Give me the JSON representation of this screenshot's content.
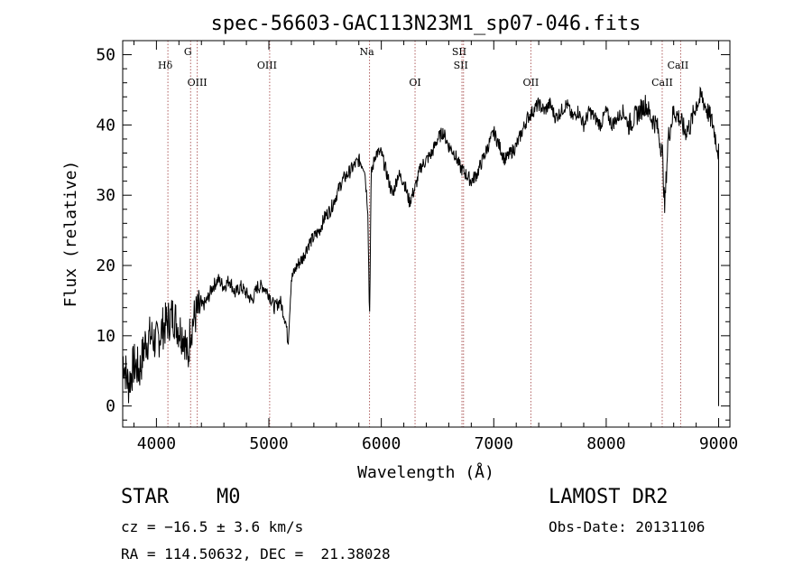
{
  "chart_data": {
    "type": "line",
    "title": "spec-56603-GAC113N23M1_sp07-046.fits",
    "xlabel": "Wavelength (Å)",
    "ylabel": "Flux (relative)",
    "xlim": [
      3700,
      9100
    ],
    "ylim": [
      -3,
      52
    ],
    "xticks": [
      4000,
      5000,
      6000,
      7000,
      8000,
      9000
    ],
    "yticks": [
      0,
      10,
      20,
      30,
      40,
      50
    ],
    "grid": false,
    "series": [
      {
        "x": [
          3700,
          3750,
          3800,
          3850,
          3900,
          3950,
          4000,
          4050,
          4100,
          4150,
          4200,
          4250,
          4280,
          4300,
          4350,
          4400,
          4450,
          4500,
          4550,
          4600,
          4650,
          4700,
          4750,
          4800,
          4850,
          4900,
          4950,
          5000,
          5050,
          5100,
          5150,
          5170,
          5200,
          5250,
          5300,
          5350,
          5400,
          5450,
          5500,
          5550,
          5600,
          5650,
          5700,
          5750,
          5800,
          5850,
          5880,
          5895,
          5910,
          5950,
          6000,
          6050,
          6100,
          6150,
          6200,
          6250,
          6300,
          6350,
          6400,
          6450,
          6500,
          6550,
          6600,
          6650,
          6700,
          6750,
          6800,
          6850,
          6900,
          6950,
          7000,
          7050,
          7100,
          7150,
          7200,
          7250,
          7300,
          7350,
          7400,
          7450,
          7500,
          7550,
          7600,
          7650,
          7700,
          7750,
          7800,
          7850,
          7900,
          7950,
          8000,
          8050,
          8100,
          8150,
          8200,
          8250,
          8300,
          8350,
          8400,
          8450,
          8500,
          8520,
          8550,
          8600,
          8650,
          8700,
          8750,
          8800,
          8850,
          8900,
          8950,
          9000
        ],
        "y": [
          7,
          3,
          6,
          5,
          9,
          10,
          9,
          11,
          12,
          13,
          11,
          10,
          6,
          11,
          13,
          14,
          15,
          17,
          18,
          17,
          18,
          16,
          17,
          16,
          15,
          17,
          17,
          16,
          14,
          15,
          12,
          9,
          18,
          20,
          21,
          23,
          24,
          25,
          27,
          28,
          30,
          32,
          33,
          34,
          35,
          34,
          28,
          12,
          33,
          36,
          36,
          33,
          30,
          33,
          32,
          29,
          31,
          34,
          35,
          36,
          38,
          39,
          37,
          36,
          34,
          33,
          32,
          33,
          35,
          37,
          39,
          37,
          35,
          36,
          37,
          39,
          41,
          42,
          43,
          42,
          43,
          41,
          42,
          43,
          41,
          42,
          40,
          42,
          41,
          40,
          42,
          40,
          41,
          42,
          40,
          41,
          42,
          43,
          41,
          40,
          36,
          28,
          38,
          42,
          41,
          39,
          40,
          43,
          44,
          42,
          40,
          36
        ]
      }
    ],
    "lines": [
      {
        "name": "Hδ",
        "wavelength": 4102,
        "row": "top"
      },
      {
        "name": "G",
        "wavelength": 4304,
        "row": "top"
      },
      {
        "name": "OIII",
        "wavelength": 4363,
        "row": "middle"
      },
      {
        "name": "OIII",
        "wavelength": 5007,
        "row": "top"
      },
      {
        "name": "Na",
        "wavelength": 5895,
        "row": "top"
      },
      {
        "name": "OI",
        "wavelength": 6300,
        "row": "middle"
      },
      {
        "name": "SII",
        "wavelength": 6717,
        "row": "top"
      },
      {
        "name": "SII",
        "wavelength": 6731,
        "row": "top2"
      },
      {
        "name": "OII",
        "wavelength": 7330,
        "row": "middle"
      },
      {
        "name": "CaII",
        "wavelength": 8498,
        "row": "middle"
      },
      {
        "name": "CaII",
        "wavelength": 8662,
        "row": "top2"
      }
    ],
    "line_color": "#b06060",
    "plot_color": "#000000"
  },
  "info": {
    "class": "STAR",
    "subclass": "M0",
    "survey": "LAMOST DR2",
    "cz": "cz = −16.5 ± 3.6 km/s",
    "obs_date": "Obs-Date: 20131106",
    "coords": "RA = 114.50632, DEC =  21.38028"
  }
}
